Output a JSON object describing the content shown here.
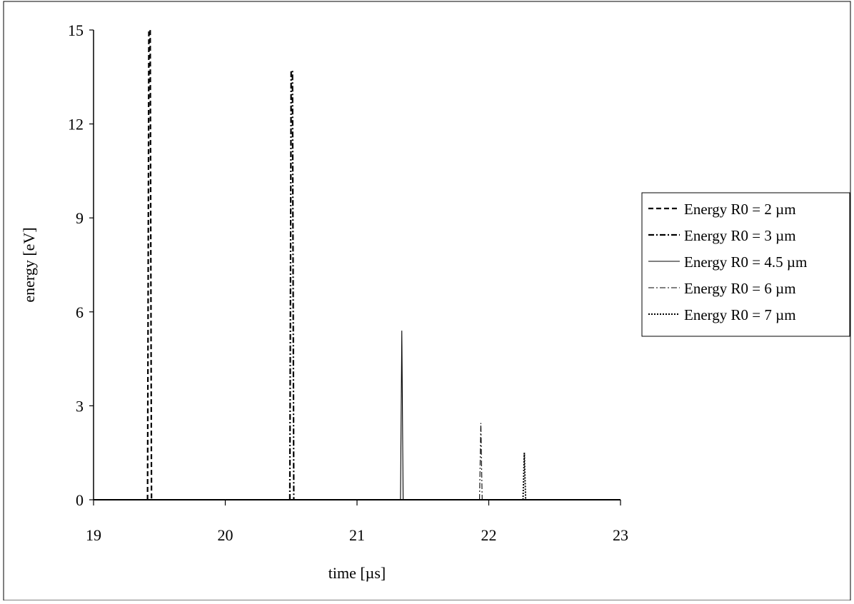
{
  "chart_data": {
    "type": "line",
    "title": "",
    "xlabel": "time [µs]",
    "ylabel": "energy [eV]",
    "xlim": [
      19,
      23
    ],
    "ylim": [
      0,
      15
    ],
    "x_ticks": [
      "19",
      "20",
      "21",
      "22",
      "23"
    ],
    "y_ticks": [
      "0",
      "3",
      "6",
      "9",
      "12",
      "15"
    ],
    "grid": false,
    "legend_position": "right",
    "series": [
      {
        "name": "Energy R0 = 2 µm",
        "style": "dashed",
        "color": "#000000",
        "x": [
          19.41,
          19.42,
          19.43,
          19.44
        ],
        "y": [
          0,
          15.0,
          15.0,
          0
        ]
      },
      {
        "name": "Energy R0 = 3 µm",
        "style": "dash-dot",
        "color": "#000000",
        "x": [
          20.49,
          20.5,
          20.51,
          20.52
        ],
        "y": [
          0,
          13.7,
          13.7,
          0
        ]
      },
      {
        "name": "Energy R0 = 4.5 µm",
        "style": "solid",
        "color": "#000000",
        "x": [
          21.33,
          21.34,
          21.35
        ],
        "y": [
          0,
          5.4,
          0
        ]
      },
      {
        "name": "Energy R0 = 6 µm",
        "style": "dash-dot-thin",
        "color": "#000000",
        "x": [
          21.93,
          21.94,
          21.95
        ],
        "y": [
          0,
          2.45,
          0
        ]
      },
      {
        "name": "Energy R0 = 7 µm",
        "style": "dotted",
        "color": "#000000",
        "x": [
          22.26,
          22.27,
          22.28
        ],
        "y": [
          0,
          1.5,
          0
        ]
      }
    ]
  }
}
